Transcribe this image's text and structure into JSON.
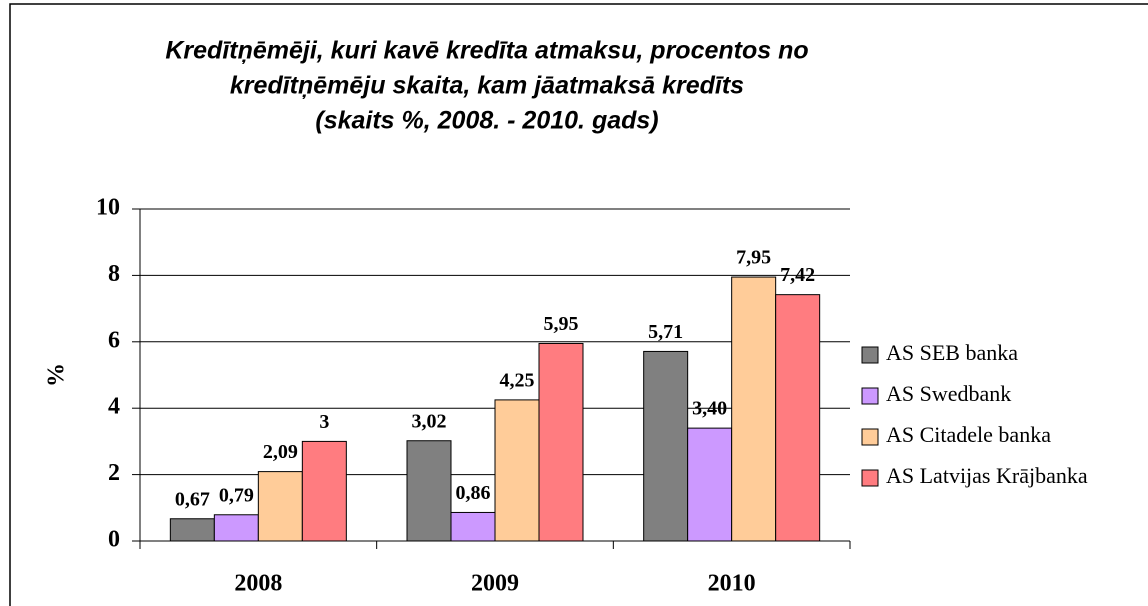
{
  "chart_data": {
    "type": "bar",
    "title": [
      "Kredītņēmēji, kuri kavē kredīta atmaksu, procentos no",
      "kredītņēmēju skaita, kam jāatmaksā kredīts",
      "(skaits %, 2008. - 2010. gads)"
    ],
    "y_label": "%",
    "categories": [
      "2008",
      "2009",
      "2010"
    ],
    "series": [
      {
        "name": "AS SEB banka",
        "color": "#808080",
        "values": [
          0.67,
          3.02,
          5.71
        ],
        "value_labels": [
          "0,67",
          "3,02",
          "5,71"
        ]
      },
      {
        "name": "AS Swedbank",
        "color": "#cc99ff",
        "values": [
          0.79,
          0.86,
          3.4
        ],
        "value_labels": [
          "0,79",
          "0,86",
          "3,40"
        ]
      },
      {
        "name": "AS Citadele banka",
        "color": "#ffcc99",
        "values": [
          2.09,
          4.25,
          7.95
        ],
        "value_labels": [
          "2,09",
          "4,25",
          "7,95"
        ]
      },
      {
        "name": "AS Latvijas Krājbanka",
        "color": "#ff7c80",
        "values": [
          3,
          5.95,
          7.42
        ],
        "value_labels": [
          "3",
          "5,95",
          "7,42"
        ]
      }
    ],
    "ylim": [
      0,
      10
    ],
    "yticks": [
      0,
      2,
      4,
      6,
      8,
      10
    ],
    "grid": true,
    "legend": "right"
  }
}
